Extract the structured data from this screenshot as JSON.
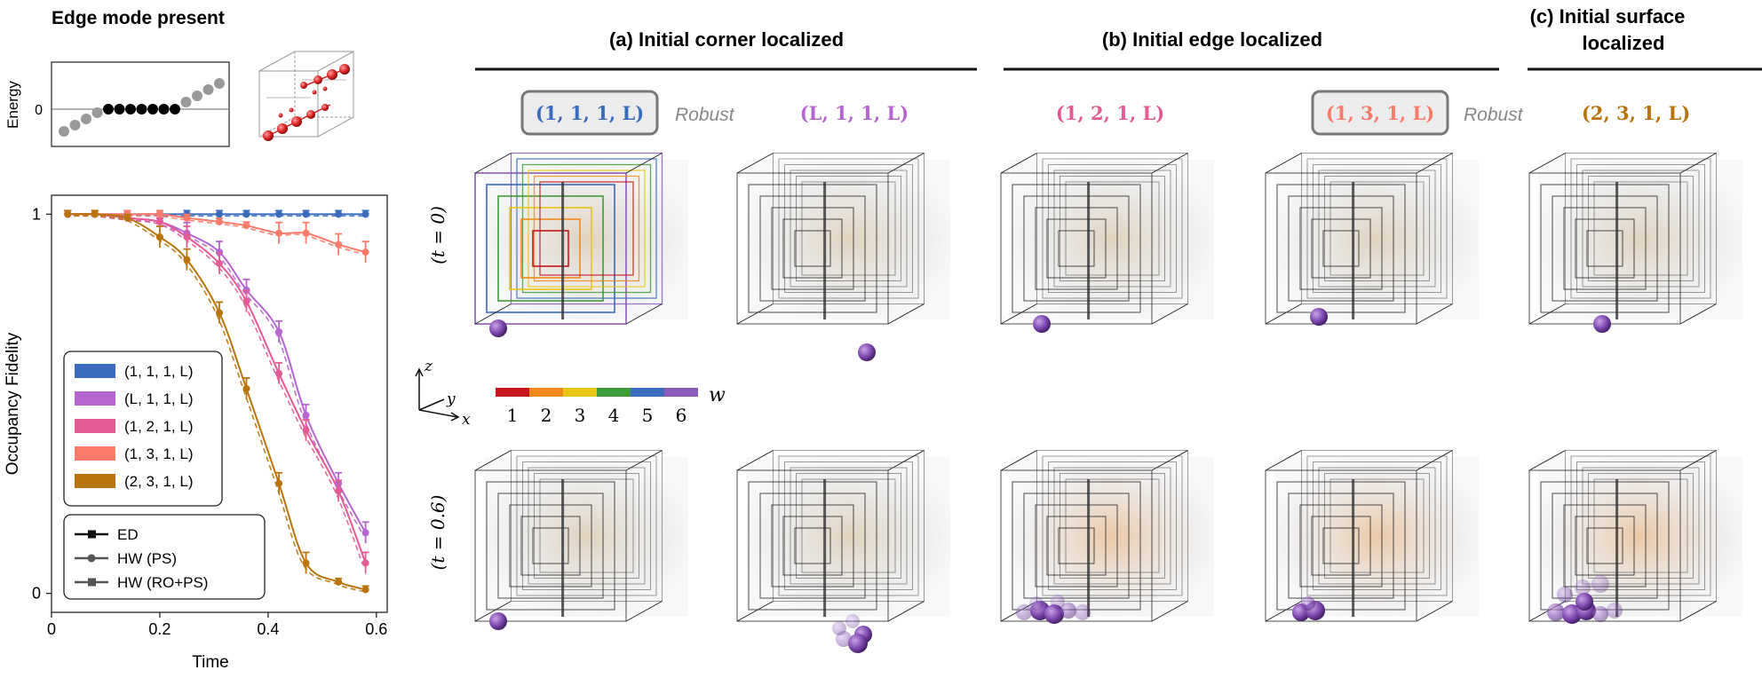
{
  "left_panel": {
    "title": "Edge mode present",
    "spectrum_ylabel": "Energy",
    "spectrum_ytick": "0"
  },
  "chart_data": {
    "type": "line",
    "xlabel": "Time",
    "ylabel": "Occupancy Fidelity",
    "xlim": [
      0,
      0.62
    ],
    "ylim": [
      -0.05,
      1.05
    ],
    "xticks": [
      "0",
      "0.2",
      "0.4",
      "0.6"
    ],
    "yticks": [
      "0",
      "1"
    ],
    "xtick_values": [
      0,
      0.2,
      0.4,
      0.6
    ],
    "ytick_values": [
      0,
      1
    ],
    "x": [
      0.03,
      0.08,
      0.14,
      0.2,
      0.25,
      0.31,
      0.36,
      0.42,
      0.47,
      0.53,
      0.58
    ],
    "series": [
      {
        "name": "(1, 1, 1, L)",
        "color": "#3b6bbd",
        "values": [
          1,
          1,
          1,
          1,
          1,
          1,
          1,
          1,
          1,
          1,
          1
        ]
      },
      {
        "name": "(L, 1, 1, L)",
        "color": "#b565cf",
        "values": [
          1,
          1,
          0.99,
          0.98,
          0.95,
          0.9,
          0.8,
          0.69,
          0.47,
          0.29,
          0.16
        ]
      },
      {
        "name": "(1, 2, 1, L)",
        "color": "#e45a94",
        "values": [
          1,
          1,
          0.99,
          0.98,
          0.94,
          0.87,
          0.77,
          0.58,
          0.43,
          0.27,
          0.08
        ]
      },
      {
        "name": "(1, 3, 1, L)",
        "color": "#fb7a6a",
        "values": [
          1,
          1,
          1,
          1,
          0.99,
          0.98,
          0.97,
          0.95,
          0.95,
          0.92,
          0.9
        ]
      },
      {
        "name": "(2, 3, 1, L)",
        "color": "#b8740b",
        "values": [
          1,
          1,
          0.99,
          0.94,
          0.88,
          0.74,
          0.54,
          0.29,
          0.08,
          0.03,
          0.01
        ]
      }
    ],
    "legend_methods": [
      "ED",
      "HW (PS)",
      "HW (RO+PS)"
    ],
    "legend_placement": "lower-left"
  },
  "panels": {
    "a_title": "(a)  Initial corner localized",
    "b_title": "(b)  Initial edge localized",
    "c_title_line1": "(c)  Initial surface",
    "c_title_line2": "localized",
    "robust": "Robust",
    "row_t0": "(t = 0)",
    "row_t06": "(t = 0.6)"
  },
  "column_labels": [
    {
      "text": "(1, 1, 1, L)",
      "color": "#3b6bbd",
      "boxed": true
    },
    {
      "text": "(L, 1, 1, L)",
      "color": "#b565cf",
      "boxed": false
    },
    {
      "text": "(1, 2, 1, L)",
      "color": "#e45a94",
      "boxed": false
    },
    {
      "text": "(1, 3, 1, L)",
      "color": "#fb7a6a",
      "boxed": true
    },
    {
      "text": "(2, 3, 1, L)",
      "color": "#b8740b",
      "boxed": false
    }
  ],
  "colorbar": {
    "label": "w",
    "ticks": [
      "1",
      "2",
      "3",
      "4",
      "5",
      "6"
    ],
    "colors": [
      "#c6161b",
      "#f08a1c",
      "#e8c515",
      "#3f9a3b",
      "#3b6bbd",
      "#8a5cb8"
    ]
  },
  "axes_triad": {
    "z": "z",
    "y": "y",
    "x": "x"
  }
}
